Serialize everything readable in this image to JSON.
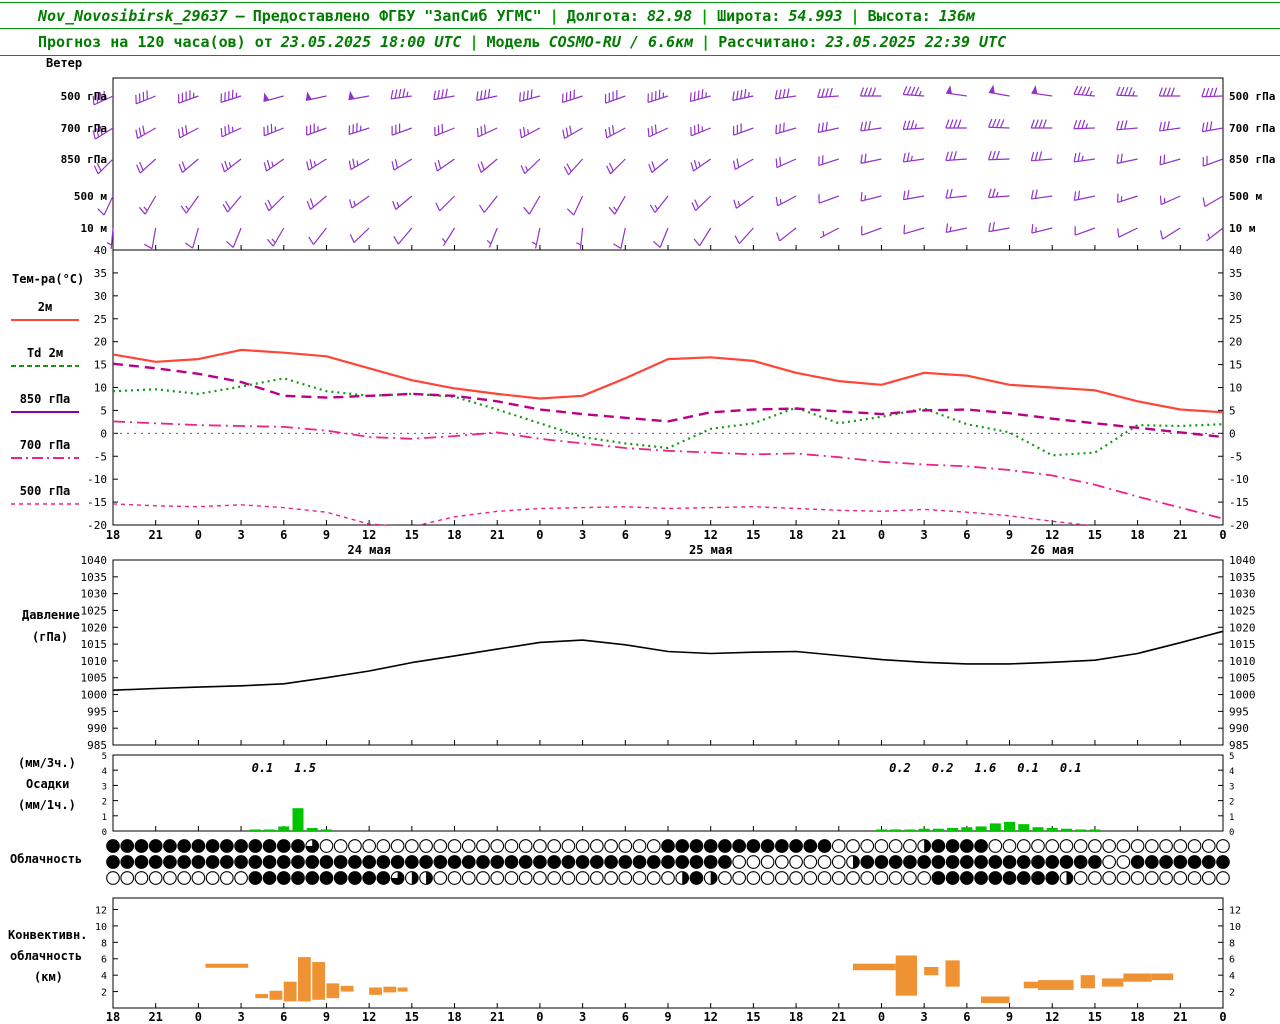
{
  "header": {
    "station": "Nov_Novosibirsk_29637",
    "dash": "—",
    "provided": "Предоставлено ФГБУ \"ЗапСиб УГМС\"",
    "sep": "|",
    "lon_label": "Долгота:",
    "lon_value": "82.98",
    "lat_label": "Широта:",
    "lat_value": "54.993",
    "alt_label": "Высота:",
    "alt_value": "136м",
    "forecast_label": "Прогноз на 120 часа(ов) от",
    "run_time": "23.05.2025 18:00 UTC",
    "model_label": "Модель",
    "model_value": "COSMO-RU / 6.6км",
    "calc_label": "Рассчитано:",
    "calc_time": "23.05.2025 22:39 UTC"
  },
  "labels": {
    "wind_title": "Ветер",
    "temp_title": "Тем-ра(°C)",
    "legend": {
      "t2m": "2м",
      "td2m": "Td 2м",
      "t850": "850 гПа",
      "t700": "700 гПа",
      "t500": "500 гПа"
    },
    "pressure_line1": "Давление",
    "pressure_line2": "(гПа)",
    "precip_line1": "(мм/3ч.)",
    "precip_line2": "Осадки",
    "precip_line3": "(мм/1ч.)",
    "cloud_title": "Облачность",
    "conv_line1": "Конвективн.",
    "conv_line2": "облачность",
    "conv_line3": "(км)"
  },
  "colors": {
    "header_green": "#007c00",
    "wind_barb": "#9232c8",
    "temp_2m": "#ff4538",
    "dewpoint": "#119911",
    "t850": "#bb0088",
    "t700": "#ee2288",
    "t500": "#ee2288",
    "pressure": "#000000",
    "precip": "#00c400",
    "convective": "#ef9234"
  },
  "chart_data": [
    {
      "id": "time-axis",
      "type": "axis",
      "hours_total": 78,
      "hour_step": 3,
      "hour_labels": [
        "18",
        "21",
        "0",
        "3",
        "6",
        "9",
        "12",
        "15",
        "18",
        "21",
        "0",
        "3",
        "6",
        "9",
        "12",
        "15",
        "18",
        "21",
        "0",
        "3",
        "6",
        "9",
        "12",
        "15",
        "18",
        "21",
        "0"
      ],
      "date_labels": [
        {
          "text": "24 мая",
          "h": 18
        },
        {
          "text": "25 мая",
          "h": 42
        },
        {
          "text": "26 мая",
          "h": 66
        }
      ]
    },
    {
      "id": "wind",
      "type": "wind-barbs",
      "title": "Ветер",
      "levels": [
        {
          "label": "500 гПа",
          "dirs": [
            245,
            248,
            250,
            252,
            255,
            258,
            260,
            262,
            260,
            258,
            255,
            252,
            250,
            252,
            255,
            258,
            262,
            266,
            270,
            274,
            278,
            280,
            278,
            275,
            272,
            270,
            268
          ],
          "speeds": [
            40,
            42,
            45,
            45,
            48,
            50,
            48,
            45,
            42,
            40,
            38,
            40,
            42,
            44,
            46,
            44,
            42,
            40,
            42,
            46,
            50,
            52,
            50,
            46,
            44,
            42,
            40
          ]
        },
        {
          "label": "700 гПа",
          "dirs": [
            238,
            240,
            242,
            245,
            248,
            250,
            252,
            250,
            248,
            245,
            242,
            240,
            242,
            245,
            248,
            250,
            254,
            258,
            262,
            266,
            270,
            272,
            270,
            268,
            265,
            262,
            260
          ],
          "speeds": [
            28,
            30,
            32,
            34,
            35,
            36,
            34,
            32,
            30,
            28,
            26,
            28,
            30,
            32,
            34,
            32,
            30,
            28,
            30,
            34,
            38,
            40,
            38,
            34,
            32,
            30,
            28
          ]
        },
        {
          "label": "850 гПа",
          "dirs": [
            225,
            228,
            230,
            232,
            235,
            238,
            240,
            238,
            235,
            230,
            226,
            222,
            225,
            230,
            235,
            240,
            246,
            252,
            258,
            262,
            266,
            268,
            265,
            262,
            258,
            254,
            250
          ],
          "speeds": [
            18,
            20,
            22,
            24,
            25,
            26,
            24,
            22,
            20,
            18,
            16,
            18,
            20,
            22,
            24,
            22,
            20,
            18,
            20,
            24,
            28,
            30,
            28,
            24,
            22,
            20,
            18
          ]
        },
        {
          "label": "500 м",
          "dirs": [
            205,
            210,
            215,
            220,
            225,
            230,
            235,
            230,
            225,
            218,
            210,
            205,
            210,
            218,
            226,
            234,
            242,
            250,
            256,
            260,
            264,
            266,
            262,
            258,
            252,
            246,
            240
          ],
          "speeds": [
            12,
            14,
            16,
            18,
            20,
            18,
            16,
            14,
            12,
            10,
            10,
            12,
            14,
            16,
            18,
            16,
            14,
            12,
            14,
            18,
            22,
            24,
            22,
            18,
            16,
            14,
            12
          ]
        },
        {
          "label": "10 м",
          "dirs": [
            185,
            190,
            196,
            202,
            210,
            218,
            226,
            220,
            212,
            202,
            192,
            186,
            192,
            202,
            212,
            222,
            232,
            242,
            250,
            254,
            258,
            260,
            256,
            250,
            244,
            238,
            232
          ],
          "speeds": [
            6,
            8,
            10,
            12,
            14,
            12,
            10,
            8,
            6,
            5,
            5,
            6,
            8,
            10,
            12,
            10,
            8,
            6,
            8,
            12,
            16,
            18,
            16,
            12,
            10,
            8,
            6
          ]
        }
      ]
    },
    {
      "id": "temperature",
      "type": "line",
      "title": "Тем-ра(°C)",
      "ylim": [
        -20,
        40
      ],
      "ytick_step": 5,
      "x_step_hours": 3,
      "zero_line": true,
      "series": [
        {
          "name": "2м",
          "color": "#ff4538",
          "dash": "",
          "width": 2.2,
          "values": [
            17.2,
            15.6,
            16.2,
            18.2,
            17.6,
            16.8,
            14.2,
            11.6,
            9.8,
            8.6,
            7.6,
            8.2,
            12.0,
            16.2,
            16.6,
            15.8,
            13.2,
            11.4,
            10.6,
            13.2,
            12.6,
            10.6,
            10.0,
            9.4,
            7.0,
            5.2,
            4.6
          ]
        },
        {
          "name": "Td 2м",
          "color": "#119911",
          "dash": "2 4",
          "width": 2.2,
          "values": [
            9.2,
            9.6,
            8.6,
            10.2,
            12.0,
            9.2,
            8.2,
            8.6,
            8.0,
            5.2,
            2.2,
            -0.8,
            -2.2,
            -3.2,
            1.0,
            2.2,
            5.6,
            2.2,
            3.6,
            5.4,
            2.0,
            0.2,
            -4.8,
            -4.2,
            1.8,
            1.6,
            2.0
          ]
        },
        {
          "name": "850 гПа",
          "color": "#bb0088",
          "dash": "10 6",
          "width": 2.4,
          "values": [
            15.2,
            14.2,
            13.0,
            11.2,
            8.2,
            7.8,
            8.2,
            8.6,
            8.2,
            7.0,
            5.2,
            4.2,
            3.4,
            2.6,
            4.6,
            5.2,
            5.4,
            4.8,
            4.2,
            5.0,
            5.2,
            4.4,
            3.2,
            2.2,
            1.2,
            0.2,
            -0.8
          ]
        },
        {
          "name": "700 гПа",
          "color": "#ee2288",
          "dash": "12 5 2 5",
          "width": 1.8,
          "values": [
            2.6,
            2.2,
            1.8,
            1.6,
            1.4,
            0.6,
            -0.8,
            -1.2,
            -0.6,
            0.2,
            -1.2,
            -2.2,
            -3.2,
            -3.8,
            -4.2,
            -4.6,
            -4.4,
            -5.2,
            -6.2,
            -6.8,
            -7.2,
            -8.0,
            -9.2,
            -11.2,
            -13.8,
            -16.2,
            -18.6
          ]
        },
        {
          "name": "500 гПа",
          "color": "#ee2288",
          "dash": "4 4",
          "width": 1.4,
          "values": [
            -15.4,
            -15.8,
            -16.0,
            -15.6,
            -16.2,
            -17.2,
            -19.8,
            -20.4,
            -18.2,
            -17.0,
            -16.4,
            -16.2,
            -16.0,
            -16.4,
            -16.2,
            -16.0,
            -16.4,
            -16.8,
            -17.0,
            -16.6,
            -17.2,
            -18.0,
            -19.2,
            -20.2,
            -20.8,
            -21.0,
            -21.2
          ]
        }
      ]
    },
    {
      "id": "pressure",
      "type": "line",
      "title": "Давление (гПа)",
      "ylim": [
        985,
        1040
      ],
      "ytick_step": 5,
      "x_step_hours": 3,
      "series": [
        {
          "name": "Давление",
          "color": "#000000",
          "dash": "",
          "width": 1.6,
          "values": [
            1001.3,
            1001.8,
            1002.2,
            1002.6,
            1003.2,
            1005.0,
            1007.0,
            1009.5,
            1011.5,
            1013.5,
            1015.5,
            1016.2,
            1014.8,
            1012.8,
            1012.2,
            1012.6,
            1012.8,
            1011.6,
            1010.4,
            1009.6,
            1009.1,
            1009.1,
            1009.6,
            1010.2,
            1012.2,
            1015.4,
            1018.8
          ]
        }
      ]
    },
    {
      "id": "precipitation",
      "type": "bar",
      "title": "Осадки (мм/3ч., мм/1ч.)",
      "ylim": [
        0,
        5
      ],
      "ytick_step": 1,
      "bars": [
        {
          "h": 10,
          "v": 0.1
        },
        {
          "h": 11,
          "v": 0.1
        },
        {
          "h": 12,
          "v": 0.3
        },
        {
          "h": 13,
          "v": 1.5
        },
        {
          "h": 14,
          "v": 0.2
        },
        {
          "h": 15,
          "v": 0.1
        },
        {
          "h": 54,
          "v": 0.1
        },
        {
          "h": 55,
          "v": 0.1
        },
        {
          "h": 56,
          "v": 0.1
        },
        {
          "h": 57,
          "v": 0.15
        },
        {
          "h": 58,
          "v": 0.15
        },
        {
          "h": 59,
          "v": 0.2
        },
        {
          "h": 60,
          "v": 0.25
        },
        {
          "h": 61,
          "v": 0.3
        },
        {
          "h": 62,
          "v": 0.5
        },
        {
          "h": 63,
          "v": 0.6
        },
        {
          "h": 64,
          "v": 0.45
        },
        {
          "h": 65,
          "v": 0.25
        },
        {
          "h": 66,
          "v": 0.2
        },
        {
          "h": 67,
          "v": 0.15
        },
        {
          "h": 68,
          "v": 0.1
        },
        {
          "h": 69,
          "v": 0.1
        }
      ],
      "amount_labels": [
        {
          "text": "0.1",
          "h": 10.5
        },
        {
          "text": "1.5",
          "h": 13.5
        },
        {
          "text": "0.2",
          "h": 55.3
        },
        {
          "text": "0.2",
          "h": 58.3
        },
        {
          "text": "1.6",
          "h": 61.3
        },
        {
          "text": "0.1",
          "h": 64.3
        },
        {
          "text": "0.1",
          "h": 67.3
        }
      ]
    },
    {
      "id": "cloudiness",
      "type": "cloud-cover-rows",
      "title": "Облачность",
      "rows": [
        [
          1,
          1,
          1,
          1,
          1,
          1,
          1,
          1,
          1,
          1,
          1,
          1,
          1,
          1,
          0.75,
          0,
          0,
          0,
          0,
          0,
          0,
          0,
          0,
          0,
          0,
          0,
          0,
          0,
          0,
          0,
          0,
          0,
          0,
          0,
          0,
          0,
          0,
          0,
          0,
          1,
          1,
          1,
          1,
          1,
          1,
          1,
          1,
          1,
          1,
          1,
          1,
          0,
          0,
          0,
          0,
          0,
          0,
          0.5,
          1,
          1,
          1,
          1,
          0,
          0,
          0,
          0,
          0,
          0,
          0,
          0,
          0,
          0,
          0,
          0,
          0,
          0,
          0,
          0,
          0
        ],
        [
          1,
          1,
          1,
          1,
          1,
          1,
          1,
          1,
          1,
          1,
          1,
          1,
          1,
          1,
          1,
          1,
          1,
          1,
          1,
          1,
          1,
          1,
          1,
          1,
          1,
          1,
          1,
          1,
          1,
          1,
          1,
          1,
          1,
          1,
          1,
          1,
          1,
          1,
          1,
          1,
          1,
          1,
          1,
          1,
          0,
          0,
          0,
          0,
          0,
          0,
          0,
          0,
          0.5,
          1,
          1,
          1,
          1,
          1,
          1,
          1,
          1,
          1,
          1,
          1,
          1,
          1,
          1,
          1,
          1,
          1,
          0,
          0,
          1,
          1,
          1,
          1,
          1,
          1,
          1
        ],
        [
          0,
          0,
          0,
          0,
          0,
          0,
          0,
          0,
          0,
          0,
          1,
          1,
          1,
          1,
          1,
          1,
          1,
          1,
          1,
          1,
          0.75,
          0.5,
          0.5,
          0,
          0,
          0,
          0,
          0,
          0,
          0,
          0,
          0,
          0,
          0,
          0,
          0,
          0,
          0,
          0,
          0,
          0.5,
          1,
          0.5,
          0,
          0,
          0,
          0,
          0,
          0,
          0,
          0,
          0,
          0,
          0,
          0,
          0,
          0,
          0,
          1,
          1,
          1,
          1,
          1,
          1,
          1,
          1,
          1,
          0.5,
          0,
          0,
          0,
          0,
          0,
          0,
          0,
          0,
          0,
          0,
          0
        ]
      ]
    },
    {
      "id": "convective",
      "type": "range-bar",
      "title": "Конвективная облачность (км)",
      "ylim": [
        0,
        13
      ],
      "ytick_step": 2,
      "segments": [
        {
          "h": 6.5,
          "w": 3,
          "b": 4.9,
          "t": 5.4
        },
        {
          "h": 10,
          "w": 0.9,
          "b": 1.2,
          "t": 1.7
        },
        {
          "h": 11,
          "w": 0.9,
          "b": 1.0,
          "t": 2.1
        },
        {
          "h": 12,
          "w": 0.9,
          "b": 0.8,
          "t": 3.2
        },
        {
          "h": 13,
          "w": 0.9,
          "b": 0.8,
          "t": 6.2
        },
        {
          "h": 14,
          "w": 0.9,
          "b": 1.0,
          "t": 5.6
        },
        {
          "h": 15,
          "w": 0.9,
          "b": 1.2,
          "t": 3.0
        },
        {
          "h": 16,
          "w": 0.9,
          "b": 2.0,
          "t": 2.7
        },
        {
          "h": 18,
          "w": 0.9,
          "b": 1.6,
          "t": 2.5
        },
        {
          "h": 19,
          "w": 0.9,
          "b": 1.9,
          "t": 2.6
        },
        {
          "h": 20,
          "w": 0.7,
          "b": 2.0,
          "t": 2.5
        },
        {
          "h": 52,
          "w": 3,
          "b": 4.6,
          "t": 5.4
        },
        {
          "h": 55,
          "w": 1.5,
          "b": 1.5,
          "t": 6.4
        },
        {
          "h": 57,
          "w": 1,
          "b": 4.0,
          "t": 5.0
        },
        {
          "h": 58.5,
          "w": 1,
          "b": 2.6,
          "t": 5.8
        },
        {
          "h": 61,
          "w": 2,
          "b": 0.6,
          "t": 1.4
        },
        {
          "h": 64,
          "w": 1,
          "b": 2.4,
          "t": 3.2
        },
        {
          "h": 65,
          "w": 2.5,
          "b": 2.2,
          "t": 3.4
        },
        {
          "h": 68,
          "w": 1,
          "b": 2.4,
          "t": 4.0
        },
        {
          "h": 69.5,
          "w": 1.5,
          "b": 2.6,
          "t": 3.6
        },
        {
          "h": 71,
          "w": 2,
          "b": 3.2,
          "t": 4.2
        },
        {
          "h": 73,
          "w": 1.5,
          "b": 3.4,
          "t": 4.2
        }
      ]
    }
  ]
}
